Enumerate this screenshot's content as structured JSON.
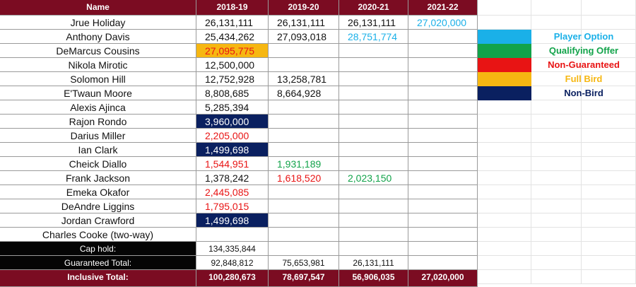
{
  "colors": {
    "header_bg": "#7b0c22",
    "summary_bg": "#050505",
    "player_option": "#1ab0e8",
    "qualifying_offer": "#12a34a",
    "non_guaranteed": "#e81414",
    "full_bird": "#f6b712",
    "non_bird": "#0a2060",
    "red_text": "#e81414",
    "blue_text": "#1ab0e8",
    "green_text": "#12a34a"
  },
  "headers": [
    "Name",
    "2018-19",
    "2019-20",
    "2020-21",
    "2021-22"
  ],
  "rows": [
    {
      "name": "Jrue Holiday",
      "cells": [
        {
          "v": "26,131,111"
        },
        {
          "v": "26,131,111"
        },
        {
          "v": "26,131,111"
        },
        {
          "v": "27,020,000",
          "style": "blue-text"
        }
      ]
    },
    {
      "name": "Anthony Davis",
      "cells": [
        {
          "v": "25,434,262"
        },
        {
          "v": "27,093,018"
        },
        {
          "v": "28,751,774",
          "style": "blue-text"
        },
        {
          "v": ""
        }
      ]
    },
    {
      "name": "DeMarcus Cousins",
      "cells": [
        {
          "v": "27,095,775",
          "style": "full-bird"
        },
        {
          "v": ""
        },
        {
          "v": ""
        },
        {
          "v": ""
        }
      ]
    },
    {
      "name": "Nikola Mirotic",
      "cells": [
        {
          "v": "12,500,000"
        },
        {
          "v": ""
        },
        {
          "v": ""
        },
        {
          "v": ""
        }
      ]
    },
    {
      "name": "Solomon Hill",
      "cells": [
        {
          "v": "12,752,928"
        },
        {
          "v": "13,258,781"
        },
        {
          "v": ""
        },
        {
          "v": ""
        }
      ]
    },
    {
      "name": "E'Twaun Moore",
      "cells": [
        {
          "v": "8,808,685"
        },
        {
          "v": "8,664,928"
        },
        {
          "v": ""
        },
        {
          "v": ""
        }
      ]
    },
    {
      "name": "Alexis Ajinca",
      "cells": [
        {
          "v": "5,285,394"
        },
        {
          "v": ""
        },
        {
          "v": ""
        },
        {
          "v": ""
        }
      ]
    },
    {
      "name": "Rajon Rondo",
      "cells": [
        {
          "v": "3,960,000",
          "style": "non-bird"
        },
        {
          "v": ""
        },
        {
          "v": ""
        },
        {
          "v": ""
        }
      ]
    },
    {
      "name": "Darius Miller",
      "cells": [
        {
          "v": "2,205,000",
          "style": "red-text"
        },
        {
          "v": ""
        },
        {
          "v": ""
        },
        {
          "v": ""
        }
      ]
    },
    {
      "name": "Ian Clark",
      "cells": [
        {
          "v": "1,499,698",
          "style": "non-bird"
        },
        {
          "v": ""
        },
        {
          "v": ""
        },
        {
          "v": ""
        }
      ]
    },
    {
      "name": "Cheick Diallo",
      "cells": [
        {
          "v": "1,544,951",
          "style": "red-text"
        },
        {
          "v": "1,931,189",
          "style": "green-text"
        },
        {
          "v": ""
        },
        {
          "v": ""
        }
      ]
    },
    {
      "name": "Frank Jackson",
      "cells": [
        {
          "v": "1,378,242"
        },
        {
          "v": "1,618,520",
          "style": "red-text"
        },
        {
          "v": "2,023,150",
          "style": "green-text"
        },
        {
          "v": ""
        }
      ]
    },
    {
      "name": "Emeka Okafor",
      "cells": [
        {
          "v": "2,445,085",
          "style": "red-text"
        },
        {
          "v": ""
        },
        {
          "v": ""
        },
        {
          "v": ""
        }
      ]
    },
    {
      "name": "DeAndre Liggins",
      "cells": [
        {
          "v": "1,795,015",
          "style": "red-text"
        },
        {
          "v": ""
        },
        {
          "v": ""
        },
        {
          "v": ""
        }
      ]
    },
    {
      "name": "Jordan Crawford",
      "cells": [
        {
          "v": "1,499,698",
          "style": "non-bird"
        },
        {
          "v": ""
        },
        {
          "v": ""
        },
        {
          "v": ""
        }
      ]
    },
    {
      "name": "Charles Cooke (two-way)",
      "cells": [
        {
          "v": ""
        },
        {
          "v": ""
        },
        {
          "v": ""
        },
        {
          "v": ""
        }
      ]
    }
  ],
  "summary": [
    {
      "label": "Cap hold:",
      "values": [
        "134,335,844",
        "",
        "",
        ""
      ]
    },
    {
      "label": "Guaranteed Total:",
      "values": [
        "92,848,812",
        "75,653,981",
        "26,131,111",
        ""
      ]
    }
  ],
  "inclusive": {
    "label": "Inclusive Total:",
    "values": [
      "100,280,673",
      "78,697,547",
      "56,906,035",
      "27,020,000"
    ]
  },
  "legend": [
    {
      "label": "Player Option",
      "swatch": "#1ab0e8",
      "text_color": "#1ab0e8"
    },
    {
      "label": "Qualifying Offer",
      "swatch": "#12a34a",
      "text_color": "#12a34a"
    },
    {
      "label": "Non-Guaranteed",
      "swatch": "#e81414",
      "text_color": "#e81414"
    },
    {
      "label": "Full Bird",
      "swatch": "#f6b712",
      "text_color": "#f6b712"
    },
    {
      "label": "Non-Bird",
      "swatch": "#0a2060",
      "text_color": "#0a2060"
    }
  ]
}
